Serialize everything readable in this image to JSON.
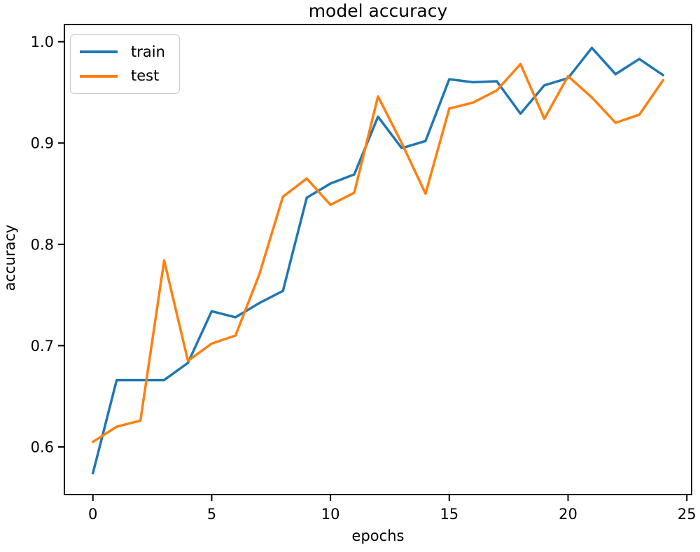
{
  "figure": {
    "background": "#ffffff",
    "text_color": "#000000",
    "spine_color": "#000000"
  },
  "chart_data": {
    "type": "line",
    "title": "model accuracy",
    "xlabel": "epochs",
    "ylabel": "accuracy",
    "x": [
      0,
      1,
      2,
      3,
      4,
      5,
      6,
      7,
      8,
      9,
      10,
      11,
      12,
      13,
      14,
      15,
      16,
      17,
      18,
      19,
      20,
      21,
      22,
      23,
      24
    ],
    "series": [
      {
        "name": "train",
        "color": "#1f77b4",
        "values": [
          0.574,
          0.666,
          0.666,
          0.666,
          0.683,
          0.734,
          0.728,
          0.742,
          0.754,
          0.846,
          0.86,
          0.869,
          0.926,
          0.895,
          0.902,
          0.963,
          0.96,
          0.961,
          0.929,
          0.957,
          0.964,
          0.994,
          0.968,
          0.983,
          0.967
        ]
      },
      {
        "name": "test",
        "color": "#ff7f0e",
        "values": [
          0.605,
          0.62,
          0.626,
          0.784,
          0.685,
          0.702,
          0.71,
          0.77,
          0.847,
          0.865,
          0.839,
          0.851,
          0.946,
          0.9,
          0.85,
          0.934,
          0.94,
          0.952,
          0.978,
          0.924,
          0.966,
          0.945,
          0.92,
          0.928,
          0.962
        ]
      }
    ],
    "xlim": [
      -1.2,
      25.2
    ],
    "ylim": [
      0.553,
      1.017
    ],
    "xticks": [
      0,
      5,
      10,
      15,
      20,
      25
    ],
    "xtick_labels": [
      "0",
      "5",
      "10",
      "15",
      "20",
      "25"
    ],
    "yticks": [
      0.6,
      0.7,
      0.8,
      0.9,
      1.0
    ],
    "ytick_labels": [
      "0.6",
      "0.7",
      "0.8",
      "0.9",
      "1.0"
    ],
    "grid": false,
    "legend": {
      "position": "upper left",
      "entries": [
        "train",
        "test"
      ]
    }
  }
}
